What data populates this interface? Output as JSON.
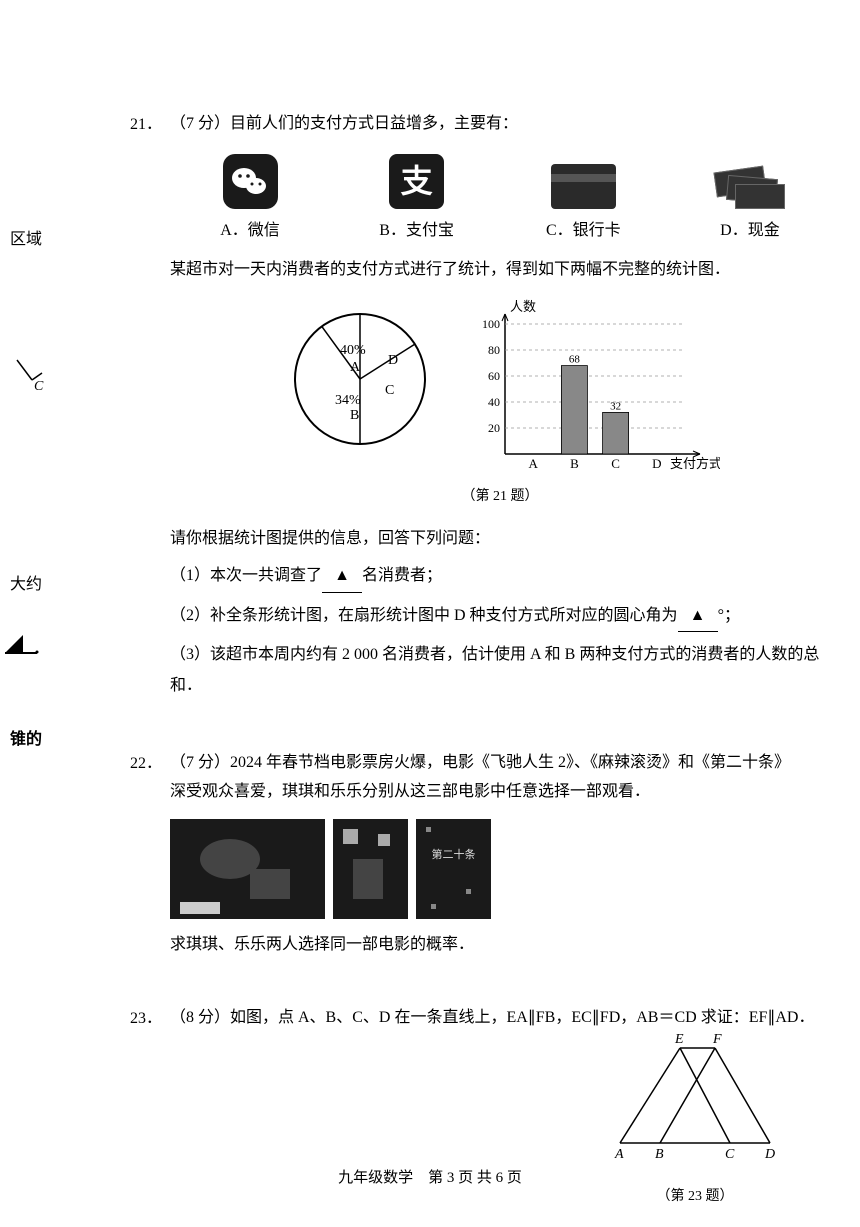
{
  "margin": {
    "note1": "区域",
    "note2": "大约",
    "note3": "锥的"
  },
  "q21": {
    "num": "21．",
    "prefix": "（7 分）目前人们的支付方式日益增多，主要有：",
    "payments": {
      "a": {
        "letter": "A．",
        "name": "微信"
      },
      "b": {
        "letter": "B．",
        "name": "支付宝"
      },
      "c": {
        "letter": "C．",
        "name": "银行卡"
      },
      "d": {
        "letter": "D．",
        "name": "现金"
      }
    },
    "intro2": "某超市对一天内消费者的支付方式进行了统计，得到如下两幅不完整的统计图．",
    "pie": {
      "slices": [
        {
          "label": "A",
          "pct": "40%",
          "start": 180,
          "end": 324,
          "color": "#ffffff"
        },
        {
          "label": "D",
          "pct": "",
          "start": 324,
          "end": 360,
          "color": "#ffffff"
        },
        {
          "label": "C",
          "pct": "",
          "start": 0,
          "end": 57.6,
          "color": "#ffffff"
        },
        {
          "label": "B",
          "pct": "34%",
          "start": 57.6,
          "end": 180,
          "color": "#ffffff"
        }
      ],
      "stroke": "#000000"
    },
    "bar": {
      "ylabel": "人数",
      "xlabel": "支付方式",
      "ymax": 100,
      "ytick": 20,
      "categories": [
        "A",
        "B",
        "C",
        "D"
      ],
      "values": [
        null,
        68,
        32,
        null
      ],
      "bar_color": "#888888",
      "grid_color": "#999999"
    },
    "caption": "（第 21 题）",
    "intro3": "请你根据统计图提供的信息，回答下列问题：",
    "sub1_a": "（1）本次一共调查了",
    "sub1_b": "名消费者；",
    "blank": "▲",
    "sub2_a": "（2）补全条形统计图，在扇形统计图中 D 种支付方式所对应的圆心角为",
    "sub2_b": "°；",
    "sub3": "（3）该超市本周内约有 2 000 名消费者，估计使用 A 和 B 两种支付方式的消费者的人数的总和．"
  },
  "q22": {
    "num": "22．",
    "line1": "（7 分）2024 年春节档电影票房火爆，电影《飞驰人生 2》、《麻辣滚烫》和《第二十条》",
    "line2": "深受观众喜爱，琪琪和乐乐分别从这三部电影中任意选择一部观看．",
    "ask": "求琪琪、乐乐两人选择同一部电影的概率．",
    "poster3_text": "第二十条"
  },
  "q23": {
    "num": "23．",
    "text": "（8 分）如图，点 A、B、C、D 在一条直线上，EA∥FB，EC∥FD，AB＝CD 求证：EF∥AD．",
    "caption": "（第 23 题）",
    "labels": {
      "E": "E",
      "F": "F",
      "A": "A",
      "B": "B",
      "C": "C",
      "D": "D"
    }
  },
  "footer": "九年级数学　第 3 页 共 6 页"
}
